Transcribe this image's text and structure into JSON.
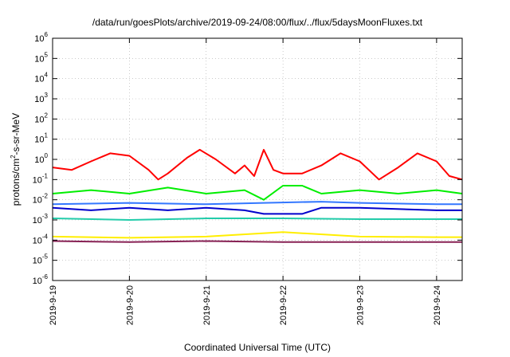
{
  "chart_data": {
    "type": "line",
    "title": "/data/run/goesPlots/archive/2019-09-24/08:00/flux/../flux/5daysMoonFluxes.txt",
    "xlabel": "Coordinated Universal Time (UTC)",
    "ylabel_parts": [
      "protons/cm",
      "2",
      "-s-sr-MeV"
    ],
    "y_scale": "log",
    "ylim": [
      1e-06,
      1000000.0
    ],
    "y_ticks": [
      {
        "base": "10",
        "exp": "-6",
        "value": 1e-06
      },
      {
        "base": "10",
        "exp": "-5",
        "value": 1e-05
      },
      {
        "base": "10",
        "exp": "-4",
        "value": 0.0001
      },
      {
        "base": "10",
        "exp": "-3",
        "value": 0.001
      },
      {
        "base": "10",
        "exp": "-2",
        "value": 0.01
      },
      {
        "base": "10",
        "exp": "-1",
        "value": 0.1
      },
      {
        "base": "10",
        "exp": "0",
        "value": 1
      },
      {
        "base": "10",
        "exp": "1",
        "value": 10
      },
      {
        "base": "10",
        "exp": "2",
        "value": 100
      },
      {
        "base": "10",
        "exp": "3",
        "value": 1000
      },
      {
        "base": "10",
        "exp": "4",
        "value": 10000
      },
      {
        "base": "10",
        "exp": "5",
        "value": 100000
      },
      {
        "base": "10",
        "exp": "6",
        "value": 1000000
      }
    ],
    "xlim": [
      "2019-09-19T00:00",
      "2019-09-24T08:00"
    ],
    "x_ticks": [
      {
        "label": "2019-9-19",
        "value": "2019-09-19T00:00"
      },
      {
        "label": "2019-9-20",
        "value": "2019-09-20T00:00"
      },
      {
        "label": "2019-9-21",
        "value": "2019-09-21T00:00"
      },
      {
        "label": "2019-9-22",
        "value": "2019-09-22T00:00"
      },
      {
        "label": "2019-9-23",
        "value": "2019-09-23T00:00"
      },
      {
        "label": "2019-9-24",
        "value": "2019-09-24T00:00"
      }
    ],
    "grid": true,
    "legend": "none",
    "series": [
      {
        "color": "#ff0000",
        "points": [
          [
            "2019-09-19T00:00",
            0.4
          ],
          [
            "2019-09-19T06:00",
            0.3
          ],
          [
            "2019-09-19T12:00",
            0.8
          ],
          [
            "2019-09-19T18:00",
            2.0
          ],
          [
            "2019-09-20T00:00",
            1.5
          ],
          [
            "2019-09-20T06:00",
            0.3
          ],
          [
            "2019-09-20T09:00",
            0.1
          ],
          [
            "2019-09-20T12:00",
            0.2
          ],
          [
            "2019-09-20T18:00",
            1.2
          ],
          [
            "2019-09-20T22:00",
            3.0
          ],
          [
            "2019-09-21T03:00",
            1.0
          ],
          [
            "2019-09-21T09:00",
            0.2
          ],
          [
            "2019-09-21T12:00",
            0.5
          ],
          [
            "2019-09-21T15:00",
            0.15
          ],
          [
            "2019-09-21T18:00",
            3.0
          ],
          [
            "2019-09-21T21:00",
            0.3
          ],
          [
            "2019-09-22T00:00",
            0.2
          ],
          [
            "2019-09-22T06:00",
            0.2
          ],
          [
            "2019-09-22T12:00",
            0.5
          ],
          [
            "2019-09-22T18:00",
            2.0
          ],
          [
            "2019-09-23T00:00",
            0.8
          ],
          [
            "2019-09-23T06:00",
            0.1
          ],
          [
            "2019-09-23T12:00",
            0.4
          ],
          [
            "2019-09-23T18:00",
            2.0
          ],
          [
            "2019-09-24T00:00",
            0.8
          ],
          [
            "2019-09-24T04:00",
            0.15
          ],
          [
            "2019-09-24T08:00",
            0.1
          ]
        ]
      },
      {
        "color": "#00ee00",
        "points": [
          [
            "2019-09-19T00:00",
            0.02
          ],
          [
            "2019-09-19T12:00",
            0.03
          ],
          [
            "2019-09-20T00:00",
            0.02
          ],
          [
            "2019-09-20T12:00",
            0.04
          ],
          [
            "2019-09-21T00:00",
            0.02
          ],
          [
            "2019-09-21T12:00",
            0.03
          ],
          [
            "2019-09-21T18:00",
            0.01
          ],
          [
            "2019-09-22T00:00",
            0.05
          ],
          [
            "2019-09-22T06:00",
            0.05
          ],
          [
            "2019-09-22T12:00",
            0.02
          ],
          [
            "2019-09-23T00:00",
            0.03
          ],
          [
            "2019-09-23T12:00",
            0.02
          ],
          [
            "2019-09-24T00:00",
            0.03
          ],
          [
            "2019-09-24T08:00",
            0.02
          ]
        ]
      },
      {
        "color": "#3377ff",
        "points": [
          [
            "2019-09-19T00:00",
            0.006
          ],
          [
            "2019-09-20T00:00",
            0.007
          ],
          [
            "2019-09-21T00:00",
            0.006
          ],
          [
            "2019-09-21T18:00",
            0.007
          ],
          [
            "2019-09-22T12:00",
            0.008
          ],
          [
            "2019-09-23T00:00",
            0.007
          ],
          [
            "2019-09-24T00:00",
            0.006
          ],
          [
            "2019-09-24T08:00",
            0.006
          ]
        ]
      },
      {
        "color": "#0000cc",
        "points": [
          [
            "2019-09-19T00:00",
            0.004
          ],
          [
            "2019-09-19T12:00",
            0.003
          ],
          [
            "2019-09-20T00:00",
            0.004
          ],
          [
            "2019-09-20T12:00",
            0.003
          ],
          [
            "2019-09-21T00:00",
            0.004
          ],
          [
            "2019-09-21T12:00",
            0.003
          ],
          [
            "2019-09-21T18:00",
            0.002
          ],
          [
            "2019-09-22T06:00",
            0.002
          ],
          [
            "2019-09-22T12:00",
            0.004
          ],
          [
            "2019-09-23T00:00",
            0.004
          ],
          [
            "2019-09-24T00:00",
            0.003
          ],
          [
            "2019-09-24T08:00",
            0.003
          ]
        ]
      },
      {
        "color": "#22ccaa",
        "points": [
          [
            "2019-09-19T00:00",
            0.0012
          ],
          [
            "2019-09-20T00:00",
            0.001
          ],
          [
            "2019-09-21T00:00",
            0.0012
          ],
          [
            "2019-09-22T00:00",
            0.0012
          ],
          [
            "2019-09-23T00:00",
            0.0011
          ],
          [
            "2019-09-24T00:00",
            0.0011
          ],
          [
            "2019-09-24T08:00",
            0.0011
          ]
        ]
      },
      {
        "color": "#ffee00",
        "points": [
          [
            "2019-09-19T00:00",
            0.00015
          ],
          [
            "2019-09-20T00:00",
            0.00013
          ],
          [
            "2019-09-21T00:00",
            0.00015
          ],
          [
            "2019-09-22T00:00",
            0.00025
          ],
          [
            "2019-09-23T00:00",
            0.00015
          ],
          [
            "2019-09-24T00:00",
            0.00014
          ],
          [
            "2019-09-24T08:00",
            0.00014
          ]
        ]
      },
      {
        "color": "#882255",
        "points": [
          [
            "2019-09-19T00:00",
            9e-05
          ],
          [
            "2019-09-20T00:00",
            8e-05
          ],
          [
            "2019-09-21T00:00",
            9e-05
          ],
          [
            "2019-09-22T00:00",
            8e-05
          ],
          [
            "2019-09-23T00:00",
            8e-05
          ],
          [
            "2019-09-24T00:00",
            8e-05
          ],
          [
            "2019-09-24T08:00",
            8e-05
          ]
        ]
      }
    ]
  }
}
